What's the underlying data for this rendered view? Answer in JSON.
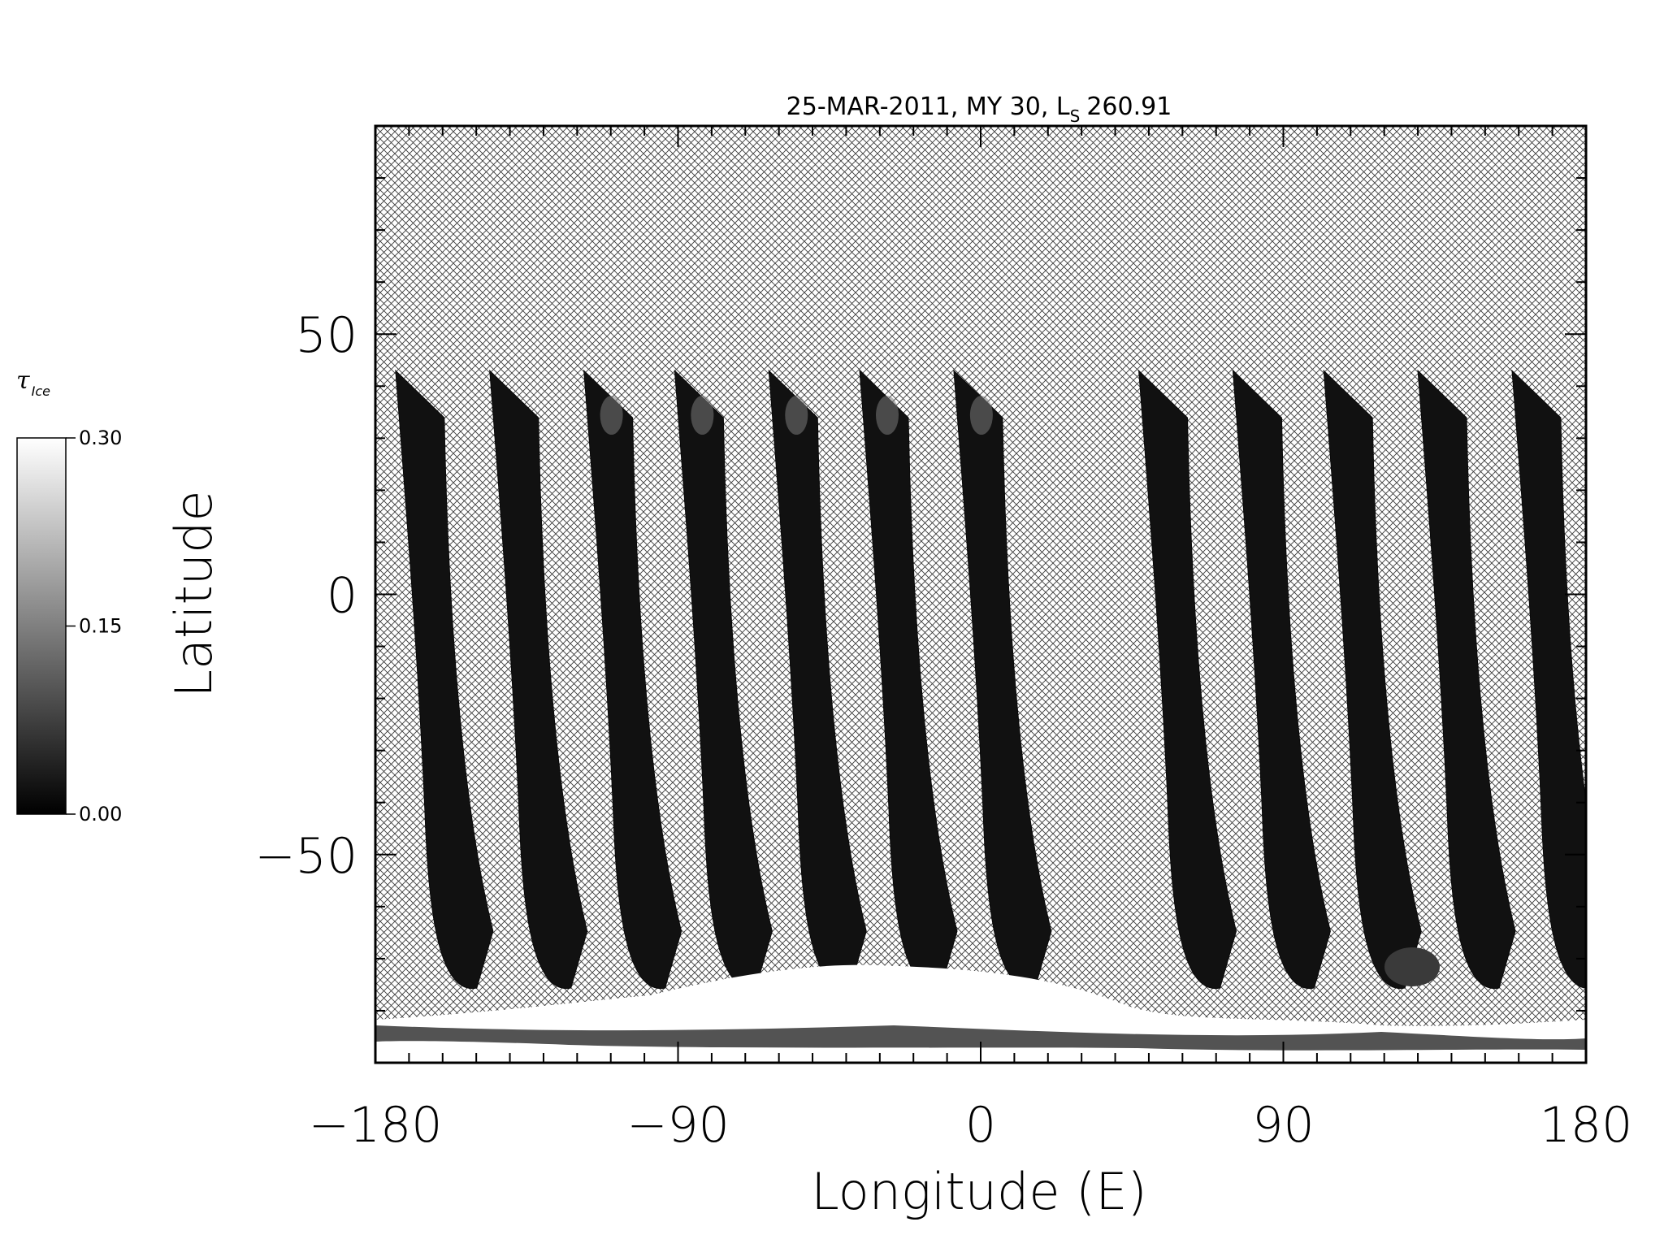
{
  "chart_data": {
    "type": "heatmap",
    "title_main": "25-MAR-2011, MY 30,  L",
    "title_sub": "S",
    "title_value": "260.91",
    "xlabel": "Longitude (E)",
    "ylabel": "Latitude",
    "xlim": [
      -180,
      180
    ],
    "ylim": [
      -90,
      90
    ],
    "x_ticks": [
      -180,
      -90,
      0,
      90,
      180
    ],
    "x_tick_labels": [
      "−180",
      "−90",
      "0",
      "90",
      "180"
    ],
    "y_ticks": [
      -50,
      0,
      50
    ],
    "y_tick_labels": [
      "−50",
      "0",
      "50"
    ],
    "grid": false,
    "no_data_fill": "crosshatch",
    "colormap": "grayscale",
    "colorbar": {
      "title": "τ",
      "title_sub": "Ice",
      "range": [
        0.0,
        0.3
      ],
      "ticks": [
        0.0,
        0.15,
        0.3
      ],
      "tick_labels": [
        "0.00",
        "0.15",
        "0.30"
      ],
      "placement": "left"
    },
    "swaths": [
      {
        "lon_top": -174,
        "lat_top": 43
      },
      {
        "lon_top": -146,
        "lat_top": 43
      },
      {
        "lon_top": -118,
        "lat_top": 43
      },
      {
        "lon_top": -91,
        "lat_top": 43
      },
      {
        "lon_top": -63,
        "lat_top": 43
      },
      {
        "lon_top": -36,
        "lat_top": 43
      },
      {
        "lon_top": -8,
        "lat_top": 43
      },
      {
        "lon_top": 47,
        "lat_top": 43
      },
      {
        "lon_top": 75,
        "lat_top": 43
      },
      {
        "lon_top": 102,
        "lat_top": 43
      },
      {
        "lon_top": 130,
        "lat_top": 43
      },
      {
        "lon_top": 158,
        "lat_top": 43
      }
    ],
    "swath_value": 0.02,
    "polar_cap_value": 0.3
  }
}
